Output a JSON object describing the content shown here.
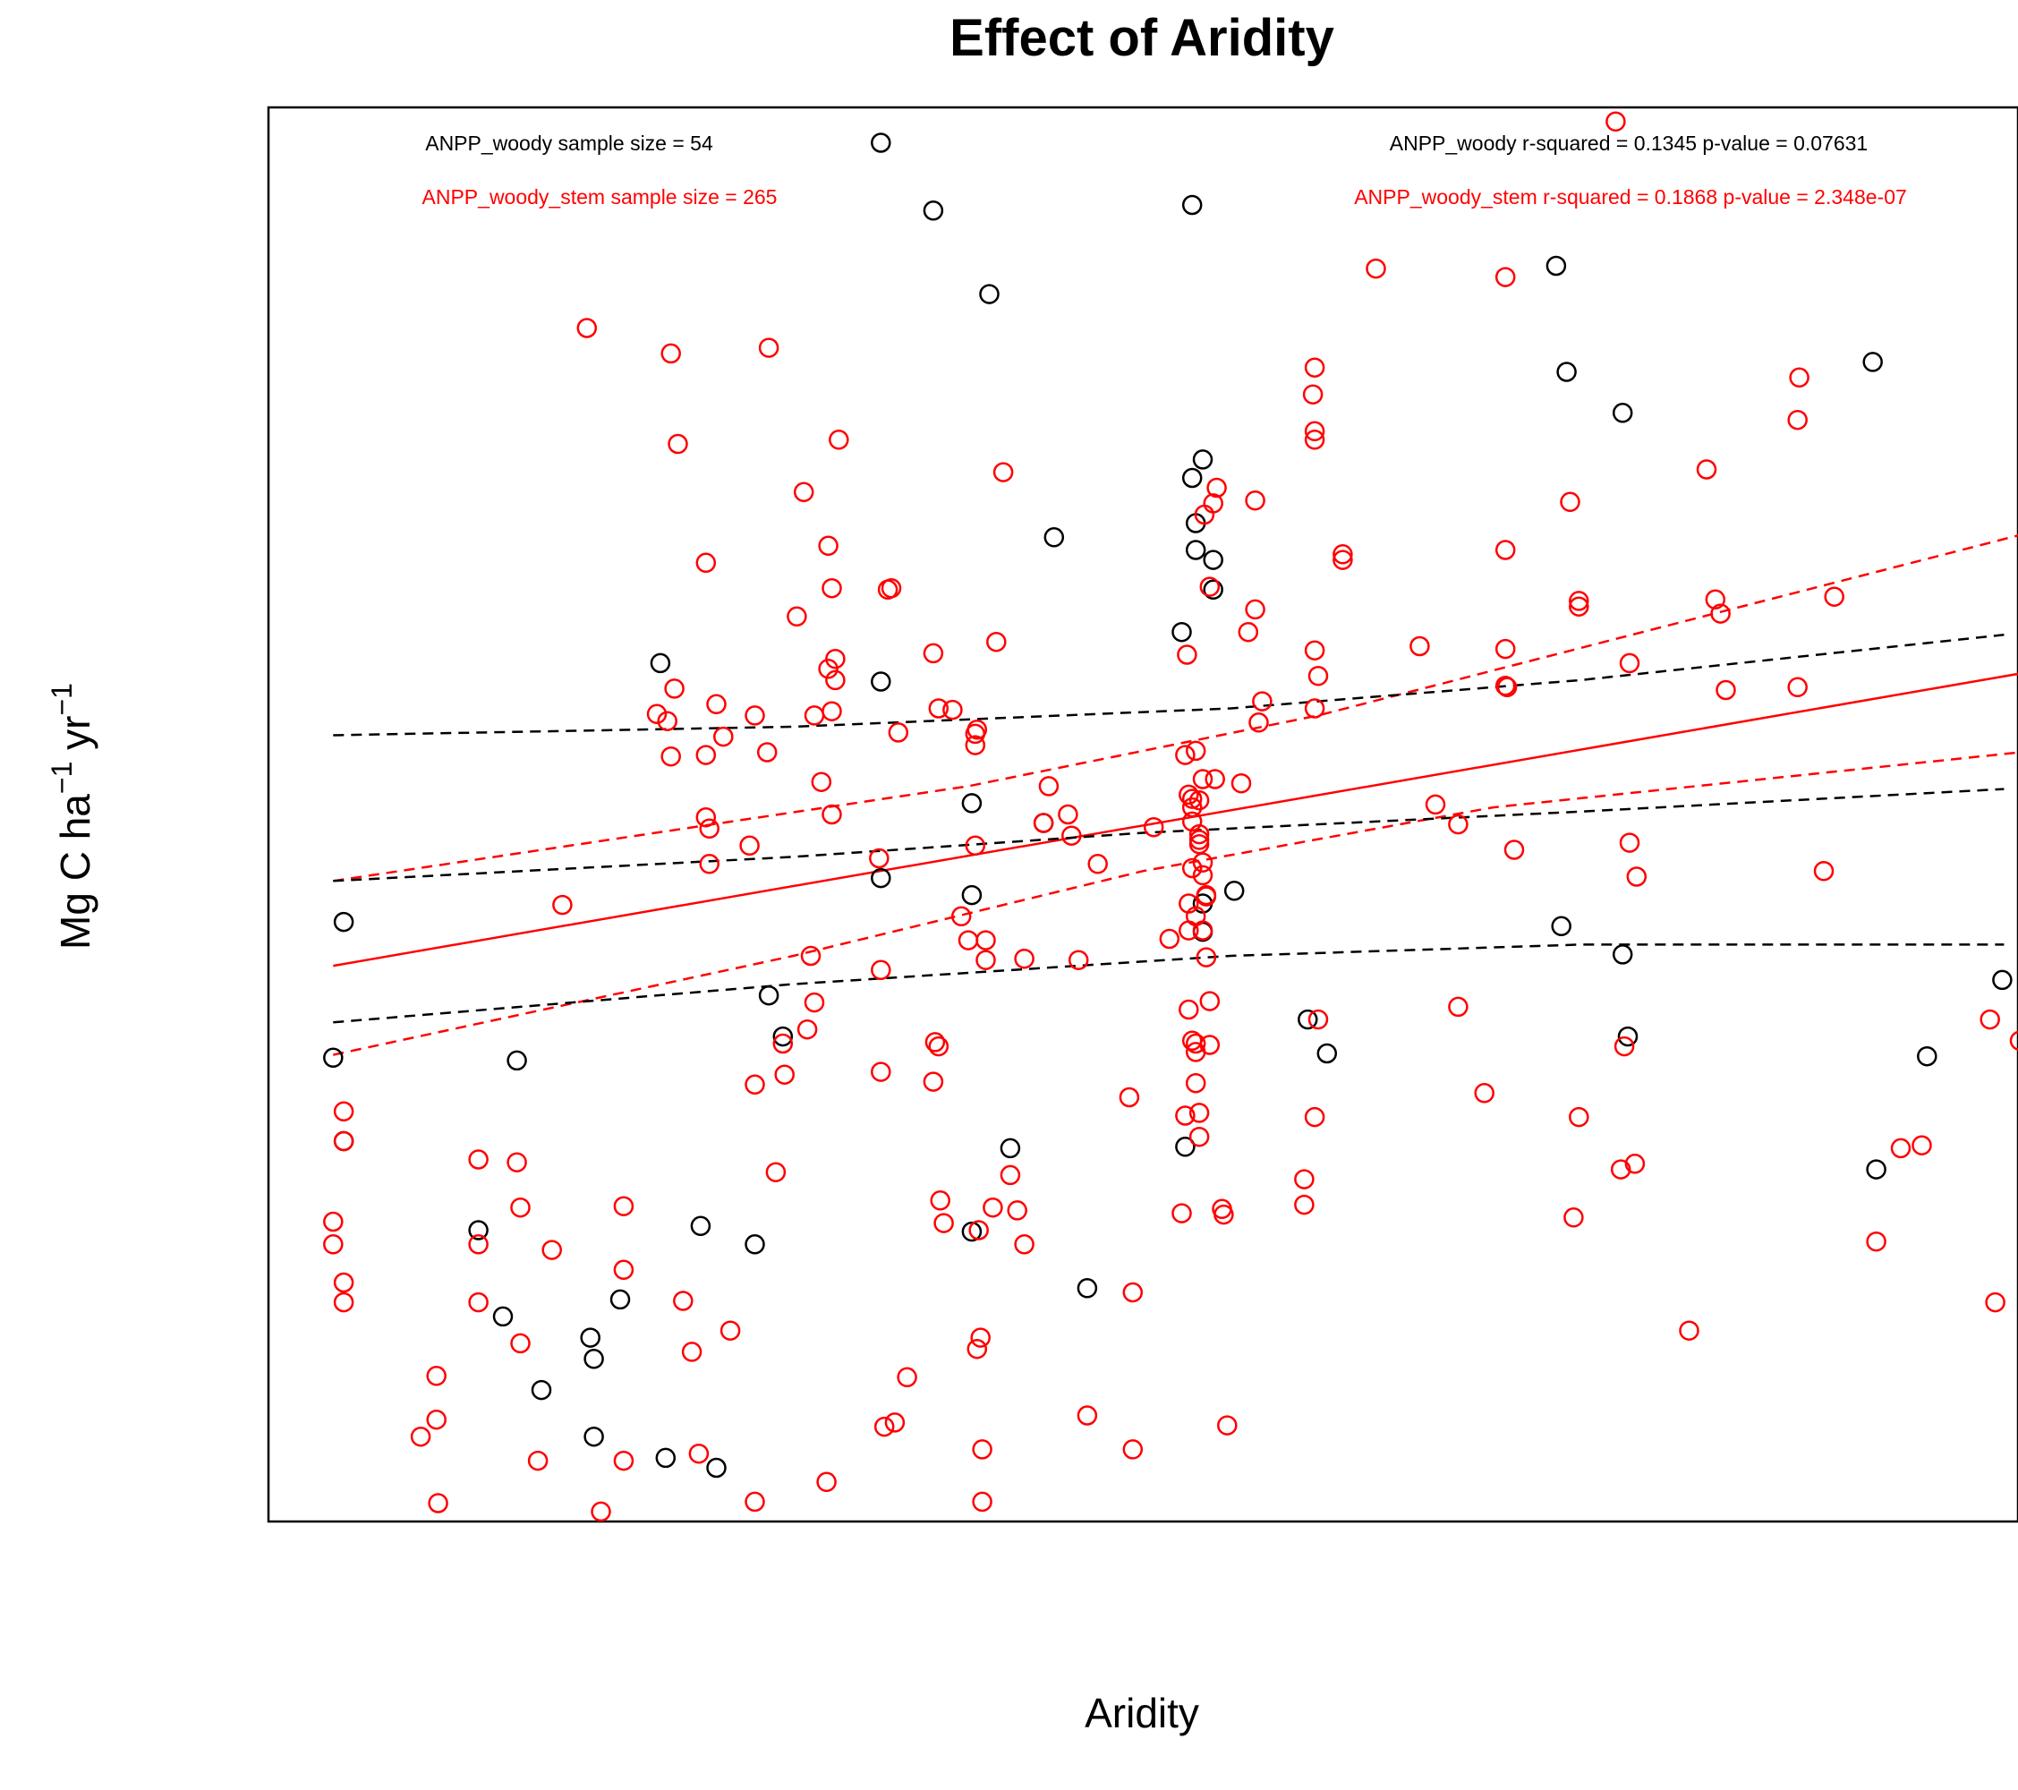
{
  "chart_data": {
    "type": "scatter",
    "title": "Effect of Aridity",
    "xlabel": "Aridity",
    "ylabel_parts": [
      "Mg C ha",
      "−1",
      " yr",
      "−1"
    ],
    "xlim": [
      0,
      1
    ],
    "ylim": [
      0,
      1
    ],
    "axes_ticks_shown": false,
    "grid": false,
    "annotations": {
      "woody_sample": "ANPP_woody sample size = 54",
      "woody_stem_sample": "ANPP_woody_stem sample size = 265",
      "woody_stats": "ANPP_woody r-squared =  0.1345 p-value =  0.07631",
      "woody_stem_stats": "ANPP_woody_stem r-squared =  0.1868 p-value =  2.348e-07"
    },
    "series": [
      {
        "color": "#000000",
        "marker": "open-circle",
        "points": [
          [
            0.037,
            0.328
          ],
          [
            0.043,
            0.424
          ],
          [
            0.043,
            0.269
          ],
          [
            0.12,
            0.206
          ],
          [
            0.134,
            0.145
          ],
          [
            0.142,
            0.326
          ],
          [
            0.156,
            0.093
          ],
          [
            0.184,
            0.13
          ],
          [
            0.186,
            0.115
          ],
          [
            0.186,
            0.06
          ],
          [
            0.201,
            0.157
          ],
          [
            0.224,
            0.607
          ],
          [
            0.227,
            0.045
          ],
          [
            0.247,
            0.209
          ],
          [
            0.256,
            0.038
          ],
          [
            0.278,
            0.196
          ],
          [
            0.286,
            0.372
          ],
          [
            0.294,
            0.343
          ],
          [
            0.35,
            0.975
          ],
          [
            0.35,
            0.594
          ],
          [
            0.35,
            0.455
          ],
          [
            0.38,
            0.927
          ],
          [
            0.402,
            0.508
          ],
          [
            0.402,
            0.443
          ],
          [
            0.402,
            0.205
          ],
          [
            0.412,
            0.868
          ],
          [
            0.424,
            0.264
          ],
          [
            0.443,
            0.494
          ],
          [
            0.449,
            0.696
          ],
          [
            0.468,
            0.165
          ],
          [
            0.522,
            0.629
          ],
          [
            0.524,
            0.265
          ],
          [
            0.528,
            0.738
          ],
          [
            0.528,
            0.931
          ],
          [
            0.53,
            0.706
          ],
          [
            0.53,
            0.687
          ],
          [
            0.534,
            0.437
          ],
          [
            0.534,
            0.417
          ],
          [
            0.534,
            0.751
          ],
          [
            0.54,
            0.68
          ],
          [
            0.54,
            0.659
          ],
          [
            0.552,
            0.446
          ],
          [
            0.594,
            0.355
          ],
          [
            0.605,
            0.331
          ],
          [
            0.736,
            0.888
          ],
          [
            0.742,
            0.813
          ],
          [
            0.739,
            0.421
          ],
          [
            0.774,
            0.784
          ],
          [
            0.774,
            0.401
          ],
          [
            0.777,
            0.343
          ],
          [
            0.917,
            0.82
          ],
          [
            0.919,
            0.249
          ],
          [
            0.948,
            0.329
          ],
          [
            0.991,
            0.383
          ]
        ]
      },
      {
        "color": "#ff0000",
        "marker": "open-circle",
        "points": [
          [
            0.037,
            0.212
          ],
          [
            0.037,
            0.196
          ],
          [
            0.043,
            0.269
          ],
          [
            0.043,
            0.29
          ],
          [
            0.043,
            0.169
          ],
          [
            0.043,
            0.155
          ],
          [
            0.096,
            0.103
          ],
          [
            0.087,
            0.06
          ],
          [
            0.096,
            0.072
          ],
          [
            0.097,
            0.013
          ],
          [
            0.12,
            0.256
          ],
          [
            0.12,
            0.196
          ],
          [
            0.12,
            0.155
          ],
          [
            0.142,
            0.254
          ],
          [
            0.144,
            0.222
          ],
          [
            0.144,
            0.126
          ],
          [
            0.154,
            0.043
          ],
          [
            0.162,
            0.192
          ],
          [
            0.168,
            0.436
          ],
          [
            0.182,
            0.844
          ],
          [
            0.19,
            0.007
          ],
          [
            0.203,
            0.223
          ],
          [
            0.203,
            0.178
          ],
          [
            0.203,
            0.043
          ],
          [
            0.222,
            0.571
          ],
          [
            0.228,
            0.566
          ],
          [
            0.23,
            0.541
          ],
          [
            0.23,
            0.826
          ],
          [
            0.232,
            0.589
          ],
          [
            0.234,
            0.762
          ],
          [
            0.237,
            0.156
          ],
          [
            0.242,
            0.12
          ],
          [
            0.246,
            0.048
          ],
          [
            0.25,
            0.542
          ],
          [
            0.252,
            0.49
          ],
          [
            0.25,
            0.498
          ],
          [
            0.25,
            0.678
          ],
          [
            0.252,
            0.465
          ],
          [
            0.256,
            0.578
          ],
          [
            0.26,
            0.555
          ],
          [
            0.264,
            0.135
          ],
          [
            0.275,
            0.478
          ],
          [
            0.278,
            0.309
          ],
          [
            0.278,
            0.014
          ],
          [
            0.278,
            0.57
          ],
          [
            0.285,
            0.544
          ],
          [
            0.286,
            0.83
          ],
          [
            0.29,
            0.247
          ],
          [
            0.294,
            0.338
          ],
          [
            0.295,
            0.316
          ],
          [
            0.302,
            0.64
          ],
          [
            0.306,
            0.728
          ],
          [
            0.308,
            0.348
          ],
          [
            0.31,
            0.4
          ],
          [
            0.312,
            0.367
          ],
          [
            0.312,
            0.57
          ],
          [
            0.316,
            0.523
          ],
          [
            0.319,
            0.028
          ],
          [
            0.32,
            0.69
          ],
          [
            0.32,
            0.603
          ],
          [
            0.322,
            0.5
          ],
          [
            0.322,
            0.573
          ],
          [
            0.324,
            0.61
          ],
          [
            0.322,
            0.66
          ],
          [
            0.324,
            0.595
          ],
          [
            0.326,
            0.765
          ],
          [
            0.35,
            0.318
          ],
          [
            0.352,
            0.067
          ],
          [
            0.358,
            0.07
          ],
          [
            0.349,
            0.469
          ],
          [
            0.36,
            0.558
          ],
          [
            0.35,
            0.39
          ],
          [
            0.354,
            0.659
          ],
          [
            0.356,
            0.66
          ],
          [
            0.365,
            0.102
          ],
          [
            0.38,
            0.614
          ],
          [
            0.383,
            0.575
          ],
          [
            0.383,
            0.336
          ],
          [
            0.38,
            0.311
          ],
          [
            0.381,
            0.339
          ],
          [
            0.384,
            0.227
          ],
          [
            0.386,
            0.211
          ],
          [
            0.391,
            0.574
          ],
          [
            0.396,
            0.428
          ],
          [
            0.4,
            0.411
          ],
          [
            0.404,
            0.557
          ],
          [
            0.404,
            0.478
          ],
          [
            0.404,
            0.549
          ],
          [
            0.406,
            0.206
          ],
          [
            0.405,
            0.122
          ],
          [
            0.407,
            0.13
          ],
          [
            0.405,
            0.56
          ],
          [
            0.408,
            0.051
          ],
          [
            0.408,
            0.014
          ],
          [
            0.41,
            0.397
          ],
          [
            0.41,
            0.411
          ],
          [
            0.414,
            0.222
          ],
          [
            0.416,
            0.622
          ],
          [
            0.42,
            0.742
          ],
          [
            0.424,
            0.245
          ],
          [
            0.428,
            0.22
          ],
          [
            0.432,
            0.398
          ],
          [
            0.432,
            0.196
          ],
          [
            0.443,
            0.494
          ],
          [
            0.446,
            0.52
          ],
          [
            0.457,
            0.5
          ],
          [
            0.459,
            0.485
          ],
          [
            0.463,
            0.397
          ],
          [
            0.468,
            0.075
          ],
          [
            0.474,
            0.465
          ],
          [
            0.492,
            0.3
          ],
          [
            0.494,
            0.162
          ],
          [
            0.494,
            0.051
          ],
          [
            0.506,
            0.491
          ],
          [
            0.515,
            0.412
          ],
          [
            0.522,
            0.218
          ],
          [
            0.524,
            0.287
          ],
          [
            0.525,
            0.613
          ],
          [
            0.524,
            0.542
          ],
          [
            0.526,
            0.437
          ],
          [
            0.526,
            0.514
          ],
          [
            0.526,
            0.418
          ],
          [
            0.526,
            0.362
          ],
          [
            0.528,
            0.34
          ],
          [
            0.528,
            0.495
          ],
          [
            0.528,
            0.505
          ],
          [
            0.53,
            0.545
          ],
          [
            0.53,
            0.428
          ],
          [
            0.528,
            0.462
          ],
          [
            0.528,
            0.511
          ],
          [
            0.532,
            0.479
          ],
          [
            0.53,
            0.31
          ],
          [
            0.53,
            0.332
          ],
          [
            0.53,
            0.338
          ],
          [
            0.532,
            0.482
          ],
          [
            0.532,
            0.486
          ],
          [
            0.532,
            0.51
          ],
          [
            0.534,
            0.418
          ],
          [
            0.532,
            0.272
          ],
          [
            0.532,
            0.289
          ],
          [
            0.534,
            0.466
          ],
          [
            0.534,
            0.457
          ],
          [
            0.534,
            0.525
          ],
          [
            0.538,
            0.337
          ],
          [
            0.536,
            0.442
          ],
          [
            0.535,
            0.712
          ],
          [
            0.536,
            0.399
          ],
          [
            0.536,
            0.443
          ],
          [
            0.538,
            0.368
          ],
          [
            0.54,
            0.72
          ],
          [
            0.538,
            0.661
          ],
          [
            0.541,
            0.525
          ],
          [
            0.542,
            0.731
          ],
          [
            0.545,
            0.221
          ],
          [
            0.546,
            0.217
          ],
          [
            0.548,
            0.068
          ],
          [
            0.556,
            0.522
          ],
          [
            0.56,
            0.629
          ],
          [
            0.564,
            0.645
          ],
          [
            0.564,
            0.722
          ],
          [
            0.568,
            0.58
          ],
          [
            0.566,
            0.565
          ],
          [
            0.592,
            0.242
          ],
          [
            0.592,
            0.224
          ],
          [
            0.597,
            0.797
          ],
          [
            0.598,
            0.816
          ],
          [
            0.598,
            0.765
          ],
          [
            0.598,
            0.771
          ],
          [
            0.598,
            0.616
          ],
          [
            0.598,
            0.575
          ],
          [
            0.6,
            0.598
          ],
          [
            0.598,
            0.286
          ],
          [
            0.6,
            0.355
          ],
          [
            0.614,
            0.684
          ],
          [
            0.614,
            0.68
          ],
          [
            0.633,
            0.886
          ],
          [
            0.658,
            0.619
          ],
          [
            0.667,
            0.507
          ],
          [
            0.68,
            0.364
          ],
          [
            0.68,
            0.493
          ],
          [
            0.695,
            0.303
          ],
          [
            0.707,
            0.88
          ],
          [
            0.707,
            0.687
          ],
          [
            0.707,
            0.617
          ],
          [
            0.707,
            0.591
          ],
          [
            0.708,
            0.59
          ],
          [
            0.712,
            0.475
          ],
          [
            0.744,
            0.721
          ],
          [
            0.749,
            0.651
          ],
          [
            0.746,
            0.215
          ],
          [
            0.749,
            0.286
          ],
          [
            0.749,
            0.647
          ],
          [
            0.775,
            0.336
          ],
          [
            0.773,
            0.249
          ],
          [
            0.778,
            0.48
          ],
          [
            0.778,
            0.607
          ],
          [
            0.781,
            0.253
          ],
          [
            0.782,
            0.456
          ],
          [
            0.812,
            0.135
          ],
          [
            0.822,
            0.744
          ],
          [
            0.827,
            0.652
          ],
          [
            0.83,
            0.642
          ],
          [
            0.833,
            0.588
          ],
          [
            0.874,
            0.779
          ],
          [
            0.874,
            0.59
          ],
          [
            0.875,
            0.809
          ],
          [
            0.889,
            0.46
          ],
          [
            0.895,
            0.654
          ],
          [
            0.919,
            0.198
          ],
          [
            0.933,
            0.264
          ],
          [
            0.945,
            0.266
          ],
          [
            0.984,
            0.355
          ],
          [
            0.987,
            0.155
          ],
          [
            1.001,
            0.34
          ],
          [
            0.77,
            0.99
          ]
        ]
      }
    ],
    "lines": [
      {
        "color": "#ff0000",
        "style": "solid",
        "points": [
          [
            0.037,
            0.393
          ],
          [
            1.04,
            0.608
          ]
        ]
      },
      {
        "color": "#ff0000",
        "style": "dashed",
        "points": [
          [
            0.037,
            0.453
          ],
          [
            0.4,
            0.52
          ],
          [
            0.6,
            0.57
          ],
          [
            1.04,
            0.71
          ]
        ]
      },
      {
        "color": "#ff0000",
        "style": "dashed",
        "points": [
          [
            0.037,
            0.33
          ],
          [
            0.3,
            0.4
          ],
          [
            0.5,
            0.46
          ],
          [
            0.7,
            0.505
          ],
          [
            1.04,
            0.549
          ]
        ]
      },
      {
        "color": "#000000",
        "style": "dashed",
        "points": [
          [
            0.037,
            0.556
          ],
          [
            0.3,
            0.562
          ],
          [
            0.55,
            0.575
          ],
          [
            0.75,
            0.595
          ],
          [
            0.992,
            0.627
          ]
        ]
      },
      {
        "color": "#000000",
        "style": "dashed",
        "points": [
          [
            0.037,
            0.453
          ],
          [
            0.3,
            0.47
          ],
          [
            0.5,
            0.487
          ],
          [
            0.75,
            0.502
          ],
          [
            0.992,
            0.518
          ]
        ]
      },
      {
        "color": "#000000",
        "style": "dashed",
        "points": [
          [
            0.037,
            0.353
          ],
          [
            0.3,
            0.38
          ],
          [
            0.55,
            0.4
          ],
          [
            0.75,
            0.408
          ],
          [
            0.992,
            0.408
          ]
        ]
      }
    ]
  }
}
